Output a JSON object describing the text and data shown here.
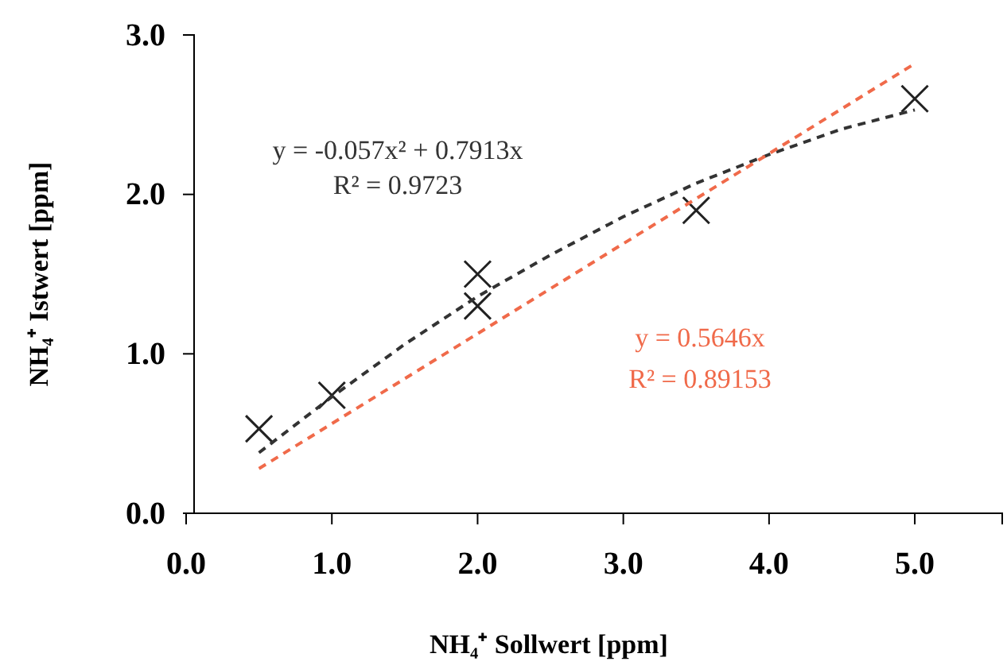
{
  "chart_data": {
    "type": "scatter",
    "xlabel": "NH₄⁺ Sollwert [ppm]",
    "ylabel": "NH₄⁺ Istwert [ppm]",
    "xlim": [
      0,
      5.6
    ],
    "ylim": [
      0,
      3
    ],
    "xticks": [
      {
        "value": 0,
        "label": "0.0"
      },
      {
        "value": 1,
        "label": "1.0"
      },
      {
        "value": 2,
        "label": "2.0"
      },
      {
        "value": 3,
        "label": "3.0"
      },
      {
        "value": 4,
        "label": "4.0"
      },
      {
        "value": 5,
        "label": "5.0"
      }
    ],
    "yticks": [
      {
        "value": 0,
        "label": "0.0"
      },
      {
        "value": 1,
        "label": "1.0"
      },
      {
        "value": 2,
        "label": "2.0"
      },
      {
        "value": 3,
        "label": "3.0"
      }
    ],
    "grid": false,
    "series": [
      {
        "color": "#222222",
        "marker": "cross",
        "x": [
          0.5,
          1,
          2,
          2,
          3.5,
          5
        ],
        "values": [
          0.53,
          0.74,
          1.3,
          1.5,
          1.9,
          2.6
        ]
      },
      {
        "type": "line",
        "color": "#333333",
        "line_style": "dashed",
        "marker": "none",
        "x": [
          0.5,
          1,
          1.5,
          2,
          2.5,
          3,
          3.5,
          4,
          4.5,
          5
        ],
        "values": [
          0.38,
          0.73,
          1.06,
          1.36,
          1.62,
          1.86,
          2.07,
          2.25,
          2.41,
          2.53
        ]
      },
      {
        "type": "line",
        "color": "#f06a4a",
        "line_style": "dashed",
        "marker": "none",
        "x": [
          0.5,
          5
        ],
        "values": [
          0.28,
          2.82
        ]
      }
    ],
    "annotations": [
      "y = -0.057x² + 0.7913x",
      "R² = 0.9723",
      "y = 0.5646x",
      "R² = 0.89153"
    ]
  }
}
